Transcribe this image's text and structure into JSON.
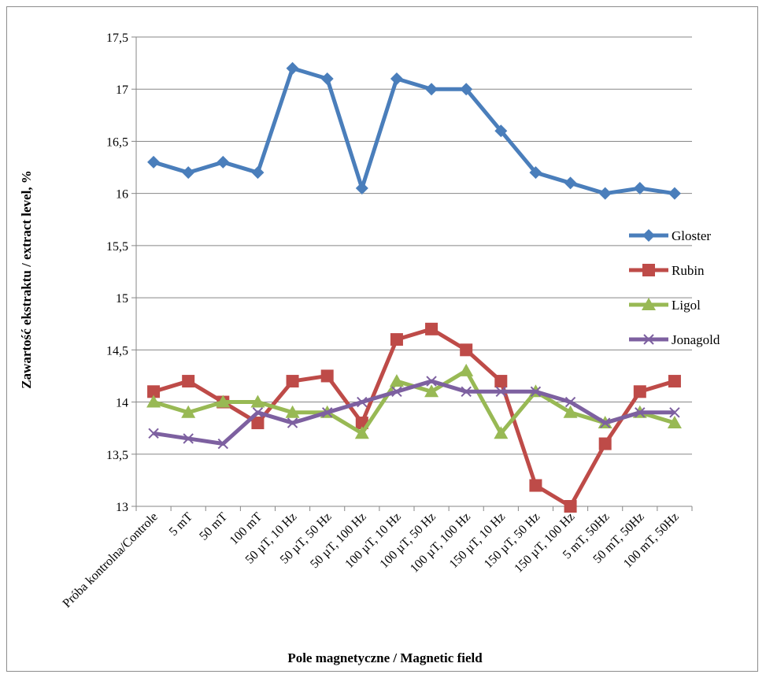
{
  "chart_data": {
    "type": "line",
    "title": "",
    "xlabel": "Pole magnetyczne / Magnetic field",
    "ylabel": "Zawartość ekstraktu / extract level, %",
    "ylim": [
      13,
      17.5
    ],
    "y_ticks": [
      "13",
      "13,5",
      "14",
      "14,5",
      "15",
      "15,5",
      "16",
      "16,5",
      "17",
      "17,5"
    ],
    "grid": "horizontal",
    "legend_position": "right",
    "categories": [
      "Próba kontrolna/Controle",
      "5 mT",
      "50 mT",
      "100 mT",
      "50 µT, 10 Hz",
      "50 µT, 50 Hz",
      "50 µT, 100 Hz",
      "100 µT, 10 Hz",
      "100 µT, 50 Hz",
      "100 µT, 100 Hz",
      "150 µT, 10 Hz",
      "150 µT, 50 Hz",
      "150 µT, 100 Hz",
      "5 mT, 50Hz",
      "50 mT, 50Hz",
      "100 mT, 50Hz"
    ],
    "series": [
      {
        "name": "Gloster",
        "color": "#4a7ebb",
        "marker": "diamond",
        "values": [
          16.3,
          16.2,
          16.3,
          16.2,
          17.2,
          17.1,
          16.05,
          17.1,
          17.0,
          17.0,
          16.6,
          16.2,
          16.1,
          16.0,
          16.05,
          16.0
        ]
      },
      {
        "name": "Rubin",
        "color": "#be4b48",
        "marker": "square",
        "values": [
          14.1,
          14.2,
          14.0,
          13.8,
          14.2,
          14.25,
          13.8,
          14.6,
          14.7,
          14.5,
          14.2,
          13.2,
          13.0,
          13.6,
          14.1,
          14.2
        ]
      },
      {
        "name": "Ligol",
        "color": "#98b954",
        "marker": "triangle",
        "values": [
          14.0,
          13.9,
          14.0,
          14.0,
          13.9,
          13.9,
          13.7,
          14.2,
          14.1,
          14.3,
          13.7,
          14.1,
          13.9,
          13.8,
          13.9,
          13.8
        ]
      },
      {
        "name": "Jonagold",
        "color": "#7d60a0",
        "marker": "x",
        "values": [
          13.7,
          13.65,
          13.6,
          13.9,
          13.8,
          13.9,
          14.0,
          14.1,
          14.2,
          14.1,
          14.1,
          14.1,
          14.0,
          13.8,
          13.9,
          13.9
        ]
      }
    ]
  }
}
